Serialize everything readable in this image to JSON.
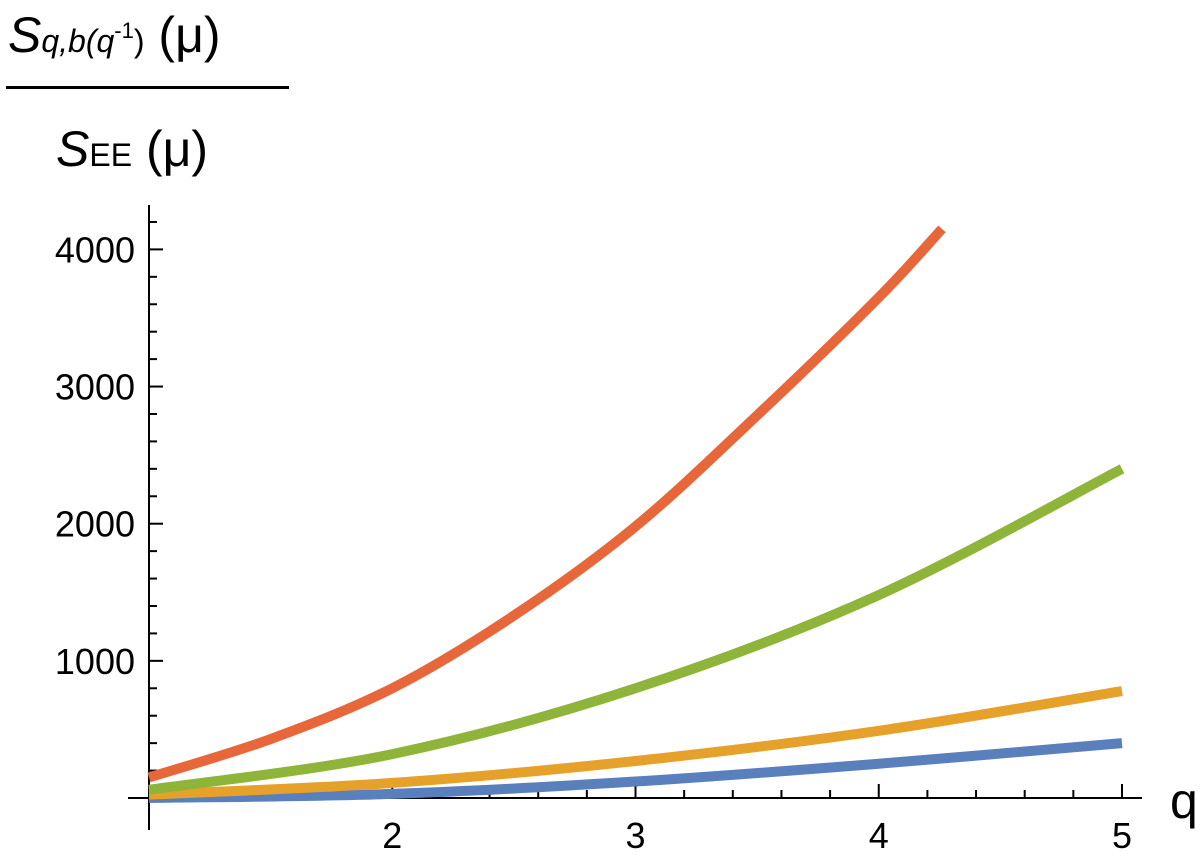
{
  "chart_data": {
    "type": "line",
    "title": "",
    "xlabel": "q",
    "ylabel": {
      "numerator_main": "S",
      "numerator_sub": "q,b(q",
      "numerator_sup": "-1",
      "numerator_sub_close": ")",
      "numerator_arg": "(μ)",
      "denominator_main": "S",
      "denominator_sub": "EE",
      "denominator_arg": "(μ)"
    },
    "xlim": [
      1,
      5
    ],
    "ylim": [
      -100,
      4350
    ],
    "x_ticks": [
      2,
      3,
      4,
      5
    ],
    "y_ticks": [
      1000,
      2000,
      3000,
      4000
    ],
    "grid": false,
    "series": [
      {
        "color": "#5a7fbd",
        "x": [
          1.0,
          2.0,
          3.0,
          4.0,
          5.0
        ],
        "y": [
          0,
          30,
          120,
          250,
          400
        ]
      },
      {
        "color": "#e6a12a",
        "x": [
          1.0,
          2.0,
          3.0,
          4.0,
          5.0
        ],
        "y": [
          25,
          110,
          270,
          490,
          780
        ]
      },
      {
        "color": "#8fb43a",
        "x": [
          1.0,
          2.0,
          3.0,
          4.0,
          5.0
        ],
        "y": [
          60,
          320,
          800,
          1480,
          2400
        ]
      },
      {
        "color": "#e8673a",
        "x": [
          1.0,
          1.5,
          2.0,
          2.5,
          3.0,
          3.5,
          4.0,
          4.26
        ],
        "y": [
          150,
          430,
          800,
          1330,
          1980,
          2790,
          3650,
          4150
        ]
      }
    ]
  }
}
